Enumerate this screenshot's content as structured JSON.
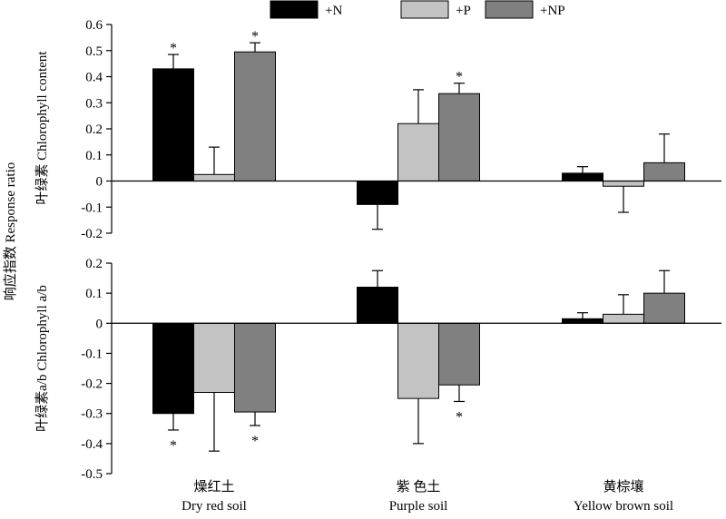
{
  "chart_data": [
    {
      "type": "bar",
      "ylabel": "叶绿素 Chlorophyll content",
      "ylim": [
        -0.2,
        0.6
      ],
      "yticks": [
        "-0.2",
        "-0.1",
        "0",
        "0.1",
        "0.2",
        "0.3",
        "0.4",
        "0.5",
        "0.6"
      ],
      "categories": [
        "Dry red soil",
        "Purple soil",
        "Yellow brown soil"
      ],
      "series": [
        {
          "name": "+N",
          "values": [
            0.43,
            -0.09,
            0.03
          ],
          "errors": [
            0.055,
            0.095,
            0.025
          ],
          "significant": [
            true,
            false,
            false
          ]
        },
        {
          "name": "+P",
          "values": [
            0.025,
            0.22,
            -0.02
          ],
          "errors": [
            0.105,
            0.13,
            0.1
          ],
          "significant": [
            false,
            false,
            false
          ]
        },
        {
          "name": "+NP",
          "values": [
            0.495,
            0.335,
            0.07
          ],
          "errors": [
            0.035,
            0.04,
            0.11
          ],
          "significant": [
            true,
            true,
            false
          ]
        }
      ]
    },
    {
      "type": "bar",
      "ylabel": "叶绿素a/b Chlorophyll a/b",
      "ylim": [
        -0.5,
        0.2
      ],
      "yticks": [
        "-0.5",
        "-0.4",
        "-0.3",
        "-0.2",
        "-0.1",
        "0",
        "0.1",
        "0.2"
      ],
      "categories": [
        "Dry red soil",
        "Purple soil",
        "Yellow brown soil"
      ],
      "series": [
        {
          "name": "+N",
          "values": [
            -0.3,
            0.12,
            0.015
          ],
          "errors": [
            0.055,
            0.055,
            0.02
          ],
          "significant": [
            true,
            false,
            false
          ]
        },
        {
          "name": "+P",
          "values": [
            -0.23,
            -0.25,
            0.03
          ],
          "errors": [
            0.195,
            0.15,
            0.065
          ],
          "significant": [
            false,
            false,
            false
          ]
        },
        {
          "name": "+NP",
          "values": [
            -0.295,
            -0.205,
            0.1
          ],
          "errors": [
            0.045,
            0.055,
            0.075
          ],
          "significant": [
            true,
            true,
            false
          ]
        }
      ]
    }
  ],
  "shared_ylabel": "响应指数 Response ratio",
  "legend": {
    "placement": "top-center",
    "items": [
      {
        "label": "+N",
        "color": "#000000"
      },
      {
        "label": "+P",
        "color": "#c3c3c3"
      },
      {
        "label": "+NP",
        "color": "#808080"
      }
    ]
  },
  "category_labels": [
    {
      "zh": "燥红土",
      "en": "Dry red soil"
    },
    {
      "zh": "紫 色土",
      "en": "Purple soil"
    },
    {
      "zh": "黄棕壤",
      "en": "Yellow brown soil"
    }
  ],
  "significance_marker": "*",
  "colors": {
    "N": "#000000",
    "P": "#c3c3c3",
    "NP": "#808080",
    "axis": "#000000"
  }
}
